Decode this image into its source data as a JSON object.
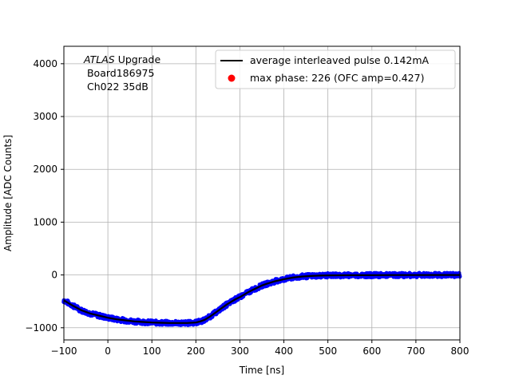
{
  "chart_data": {
    "type": "scatter",
    "title": "",
    "xlabel": "Time [ns]",
    "ylabel": "Amplitude [ADC Counts]",
    "xlim": [
      -100,
      800
    ],
    "ylim": [
      -1230,
      4330
    ],
    "xticks": [
      -100,
      0,
      100,
      200,
      300,
      400,
      500,
      600,
      700,
      800
    ],
    "yticks": [
      -1000,
      0,
      1000,
      2000,
      3000,
      4000
    ],
    "grid": true,
    "legend_position": "top-right",
    "annotation": {
      "italic": "ATLAS",
      "rest": " Upgrade",
      "line2": " Board186975",
      "line3": " Ch022 35dB"
    },
    "series": [
      {
        "name": "average interleaved pulse 0.142mA",
        "kind": "line",
        "color": "#000000",
        "x": [
          -100,
          -80,
          -60,
          -40,
          -20,
          0,
          20,
          40,
          60,
          80,
          100,
          120,
          140,
          160,
          180,
          200,
          210,
          220,
          230,
          240,
          250,
          260,
          270,
          280,
          290,
          300,
          310,
          320,
          330,
          340,
          350,
          360,
          380,
          400,
          420,
          440,
          460,
          480,
          500,
          550,
          600,
          650,
          700,
          750,
          800
        ],
        "y": [
          -480,
          -580,
          -670,
          -730,
          -770,
          -810,
          -840,
          -860,
          -880,
          -890,
          -900,
          -905,
          -910,
          -910,
          -910,
          -900,
          -880,
          -850,
          -800,
          -740,
          -680,
          -620,
          -560,
          -510,
          -460,
          -420,
          -370,
          -320,
          -280,
          -240,
          -200,
          -170,
          -120,
          -80,
          -50,
          -30,
          -20,
          -12,
          -8,
          -5,
          -3,
          -2,
          -1,
          0,
          0
        ]
      },
      {
        "name": "max phase: 226 (OFC amp=0.427)",
        "kind": "scatter",
        "color": "#ff0000",
        "x": [],
        "y": []
      },
      {
        "name": "",
        "kind": "scatter",
        "color": "#0000ff",
        "x": [],
        "y": []
      }
    ]
  }
}
